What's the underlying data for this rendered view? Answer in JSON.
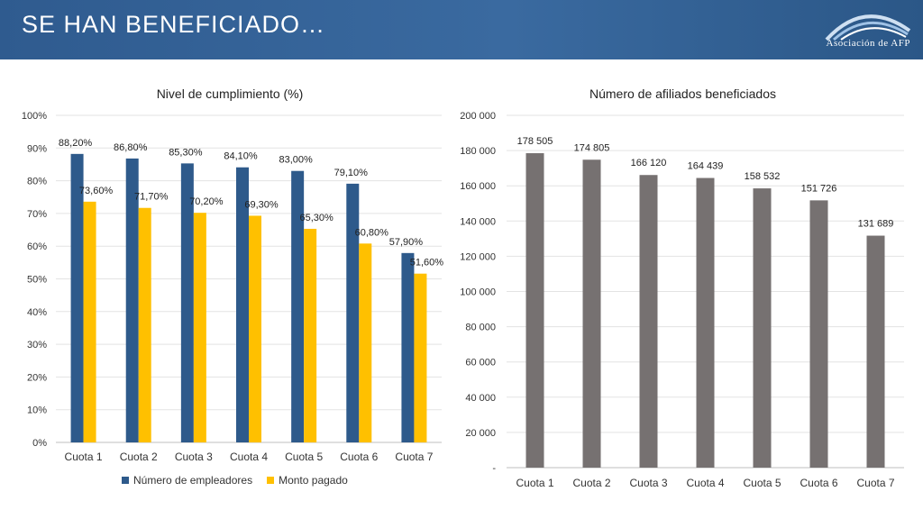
{
  "header": {
    "title": "SE HAN BENEFICIADO…",
    "logo_text": "Asociación de AFP"
  },
  "colors": {
    "series1": "#2e5a8b",
    "series2": "#ffc000",
    "bars_right": "#767171",
    "header": "#3363a0"
  },
  "chart_data": [
    {
      "type": "bar",
      "title": "Nivel de cumplimiento (%)",
      "categories": [
        "Cuota 1",
        "Cuota 2",
        "Cuota 3",
        "Cuota 4",
        "Cuota 5",
        "Cuota 6",
        "Cuota 7"
      ],
      "series": [
        {
          "name": "Número de empleadores",
          "values": [
            88.2,
            86.8,
            85.3,
            84.1,
            83.0,
            79.1,
            57.9
          ],
          "labels": [
            "88,20%",
            "86,80%",
            "85,30%",
            "84,10%",
            "83,00%",
            "79,10%",
            "57,90%"
          ]
        },
        {
          "name": "Monto pagado",
          "values": [
            73.6,
            71.7,
            70.2,
            69.3,
            65.3,
            60.8,
            51.6
          ],
          "labels": [
            "73,60%",
            "71,70%",
            "70,20%",
            "69,30%",
            "65,30%",
            "60,80%",
            "51,60%"
          ]
        }
      ],
      "ylim": [
        0,
        100
      ],
      "yticks": [
        "0%",
        "10%",
        "20%",
        "30%",
        "40%",
        "50%",
        "60%",
        "70%",
        "80%",
        "90%",
        "100%"
      ],
      "grid": true,
      "legend": "bottom"
    },
    {
      "type": "bar",
      "title": "Número de afiliados beneficiados",
      "categories": [
        "Cuota 1",
        "Cuota 2",
        "Cuota 3",
        "Cuota 4",
        "Cuota 5",
        "Cuota 6",
        "Cuota 7"
      ],
      "values": [
        178505,
        174805,
        166120,
        164439,
        158532,
        151726,
        131689
      ],
      "labels": [
        "178 505",
        "174 805",
        "166 120",
        "164 439",
        "158 532",
        "151 726",
        "131 689"
      ],
      "ylim": [
        0,
        200000
      ],
      "yticks": [
        "-",
        "20 000",
        "40 000",
        "60 000",
        "80 000",
        "100 000",
        "120 000",
        "140 000",
        "160 000",
        "180 000",
        "200 000"
      ],
      "grid": true
    }
  ]
}
